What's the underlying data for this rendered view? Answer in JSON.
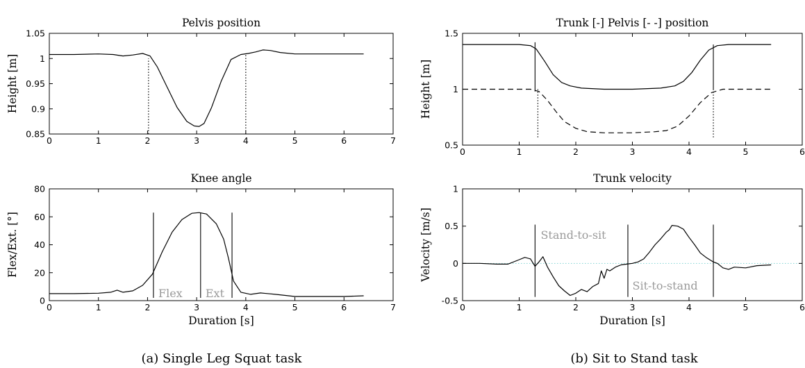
{
  "figures": [
    {
      "caption": "(a) Single Leg Squat task",
      "charts": [
        {
          "type": "line",
          "title": "Pelvis position",
          "xlabel": "",
          "ylabel": "Height [m]",
          "xlim": [
            0,
            7
          ],
          "ylim": [
            0.85,
            1.05
          ],
          "xticks": [
            0,
            1,
            2,
            3,
            4,
            5,
            6,
            7
          ],
          "yticks": [
            0.85,
            0.9,
            0.95,
            1,
            1.05
          ],
          "ytick_labels": [
            "0.85",
            "0.9",
            "0.95",
            "1",
            "1.05"
          ],
          "series": [
            {
              "style": "solid",
              "x": [
                0,
                0.5,
                1.0,
                1.3,
                1.5,
                1.7,
                1.9,
                2.05,
                2.2,
                2.4,
                2.6,
                2.8,
                2.95,
                3.05,
                3.15,
                3.3,
                3.5,
                3.7,
                3.9,
                4.05,
                4.2,
                4.35,
                4.5,
                4.7,
                5.0,
                5.5,
                6.0,
                6.4
              ],
              "y": [
                1.008,
                1.008,
                1.009,
                1.008,
                1.005,
                1.007,
                1.01,
                1.005,
                0.983,
                0.943,
                0.903,
                0.875,
                0.866,
                0.865,
                0.871,
                0.902,
                0.955,
                0.998,
                1.008,
                1.01,
                1.013,
                1.017,
                1.016,
                1.012,
                1.009,
                1.009,
                1.009,
                1.009
              ]
            }
          ],
          "vlines": [
            {
              "x": 2.02,
              "y0": 0.85,
              "y1": 1.0,
              "style": "dotted"
            },
            {
              "x": 4.0,
              "y0": 0.85,
              "y1": 1.01,
              "style": "dotted"
            }
          ],
          "annotations": []
        },
        {
          "type": "line",
          "title": "Knee angle",
          "xlabel": "Duration [s]",
          "ylabel": "Flex/Ext. [°]",
          "xlim": [
            0,
            7
          ],
          "ylim": [
            0,
            80
          ],
          "xticks": [
            0,
            1,
            2,
            3,
            4,
            5,
            6,
            7
          ],
          "yticks": [
            0,
            20,
            40,
            60,
            80
          ],
          "ytick_labels": [
            "0",
            "20",
            "40",
            "60",
            "80"
          ],
          "series": [
            {
              "style": "solid",
              "x": [
                0,
                0.5,
                1.0,
                1.25,
                1.38,
                1.5,
                1.7,
                1.9,
                2.1,
                2.3,
                2.5,
                2.7,
                2.9,
                3.05,
                3.2,
                3.4,
                3.55,
                3.65,
                3.75,
                3.9,
                4.1,
                4.3,
                4.6,
                5.0,
                5.5,
                6.0,
                6.4
              ],
              "y": [
                5,
                5,
                5.3,
                6,
                7.5,
                6,
                7,
                11,
                19,
                35,
                49,
                58,
                62.5,
                63,
                62,
                55,
                44,
                30,
                14,
                6,
                4.5,
                5.5,
                4.5,
                3,
                3,
                3,
                3.5
              ]
            }
          ],
          "vlines": [
            {
              "x": 2.12,
              "y0": 2,
              "y1": 63,
              "style": "solid"
            },
            {
              "x": 3.08,
              "y0": 2,
              "y1": 63,
              "style": "solid"
            },
            {
              "x": 3.72,
              "y0": 2,
              "y1": 63,
              "style": "solid"
            }
          ],
          "annotations": [
            {
              "text": "Flex",
              "x": 2.22,
              "y": 2.5
            },
            {
              "text": "Ext",
              "x": 3.18,
              "y": 2.5
            }
          ]
        }
      ]
    },
    {
      "caption": "(b) Sit to Stand task",
      "charts": [
        {
          "type": "line",
          "title": "Trunk [-]    Pelvis [- -] position",
          "xlabel": "",
          "ylabel": "Height [m]",
          "xlim": [
            0,
            6
          ],
          "ylim": [
            0.5,
            1.5
          ],
          "xticks": [
            0,
            1,
            2,
            3,
            4,
            5,
            6
          ],
          "yticks": [
            0.5,
            1,
            1.5
          ],
          "ytick_labels": [
            "0.5",
            "1",
            "1.5"
          ],
          "series": [
            {
              "style": "solid",
              "x": [
                0,
                0.5,
                1.0,
                1.2,
                1.3,
                1.45,
                1.6,
                1.75,
                1.9,
                2.1,
                2.5,
                3.0,
                3.5,
                3.75,
                3.9,
                4.05,
                4.2,
                4.35,
                4.5,
                4.7,
                5.0,
                5.45
              ],
              "y": [
                1.4,
                1.4,
                1.4,
                1.39,
                1.36,
                1.25,
                1.13,
                1.06,
                1.03,
                1.01,
                1.0,
                1.0,
                1.01,
                1.03,
                1.07,
                1.15,
                1.26,
                1.35,
                1.39,
                1.4,
                1.4,
                1.4
              ]
            },
            {
              "style": "dashed",
              "x": [
                0,
                0.5,
                1.0,
                1.2,
                1.35,
                1.5,
                1.65,
                1.8,
                2.0,
                2.2,
                2.5,
                3.0,
                3.4,
                3.6,
                3.8,
                4.0,
                4.2,
                4.4,
                4.6,
                5.0,
                5.45
              ],
              "y": [
                1.0,
                1.0,
                1.0,
                1.0,
                0.98,
                0.9,
                0.8,
                0.71,
                0.65,
                0.62,
                0.61,
                0.61,
                0.62,
                0.63,
                0.67,
                0.76,
                0.88,
                0.97,
                1.0,
                1.0,
                1.0
              ]
            }
          ],
          "vlines": [
            {
              "x": 1.28,
              "y0": 0.98,
              "y1": 1.42,
              "style": "solid"
            },
            {
              "x": 1.33,
              "y0": 0.57,
              "y1": 1.0,
              "style": "dotted"
            },
            {
              "x": 4.43,
              "y0": 0.57,
              "y1": 1.0,
              "style": "dotted"
            },
            {
              "x": 4.43,
              "y0": 1.0,
              "y1": 1.4,
              "style": "solid"
            }
          ],
          "annotations": []
        },
        {
          "type": "line",
          "title": "Trunk velocity",
          "xlabel": "Duration [s]",
          "ylabel": "Velocity [m/s]",
          "xlim": [
            0,
            6
          ],
          "ylim": [
            -0.5,
            1
          ],
          "xticks": [
            0,
            1,
            2,
            3,
            4,
            5,
            6
          ],
          "yticks": [
            -0.5,
            0,
            0.5,
            1
          ],
          "ytick_labels": [
            "-0.5",
            "0",
            "0.5",
            "1"
          ],
          "series": [
            {
              "style": "solid",
              "x": [
                0,
                0.3,
                0.6,
                0.8,
                1.0,
                1.1,
                1.2,
                1.28,
                1.35,
                1.42,
                1.5,
                1.6,
                1.7,
                1.8,
                1.9,
                2.0,
                2.1,
                2.2,
                2.3,
                2.4,
                2.45,
                2.5,
                2.55,
                2.6,
                2.7,
                2.8,
                2.9,
                3.0,
                3.1,
                3.2,
                3.3,
                3.4,
                3.5,
                3.6,
                3.65,
                3.7,
                3.8,
                3.9,
                4.0,
                4.1,
                4.2,
                4.3,
                4.43,
                4.5,
                4.6,
                4.7,
                4.8,
                5.0,
                5.2,
                5.45
              ],
              "y": [
                0,
                0,
                -0.01,
                -0.01,
                0.05,
                0.08,
                0.06,
                -0.04,
                0.02,
                0.09,
                -0.05,
                -0.18,
                -0.3,
                -0.37,
                -0.43,
                -0.4,
                -0.35,
                -0.38,
                -0.31,
                -0.27,
                -0.1,
                -0.2,
                -0.08,
                -0.1,
                -0.05,
                -0.02,
                -0.01,
                0.0,
                0.02,
                0.06,
                0.15,
                0.25,
                0.33,
                0.42,
                0.45,
                0.51,
                0.5,
                0.46,
                0.35,
                0.25,
                0.14,
                0.08,
                0.02,
                0.0,
                -0.06,
                -0.08,
                -0.05,
                -0.06,
                -0.03,
                -0.02
              ]
            }
          ],
          "hline": {
            "y": 0,
            "style": "dotted",
            "color": "#7fd4d4"
          },
          "vlines": [
            {
              "x": 1.28,
              "y0": -0.45,
              "y1": 0.52,
              "style": "solid"
            },
            {
              "x": 2.92,
              "y0": -0.45,
              "y1": 0.52,
              "style": "solid"
            },
            {
              "x": 4.43,
              "y0": -0.45,
              "y1": 0.52,
              "style": "solid"
            }
          ],
          "annotations": [
            {
              "text": "Stand-to-sit",
              "x": 1.38,
              "y": 0.33
            },
            {
              "text": "Sit-to-stand",
              "x": 3.0,
              "y": -0.35
            }
          ]
        }
      ]
    }
  ],
  "chart_data": [
    {
      "type": "line",
      "title": "Pelvis position",
      "xlabel": "",
      "ylabel": "Height [m]",
      "xlim": [
        0,
        7
      ],
      "ylim": [
        0.85,
        1.05
      ],
      "grid": false,
      "series": [
        {
          "x": [
            0,
            1.0,
            1.5,
            1.9,
            2.05,
            2.4,
            2.8,
            3.05,
            3.3,
            3.7,
            4.0,
            4.35,
            5.0,
            6.4
          ],
          "y": [
            1.008,
            1.009,
            1.005,
            1.01,
            1.005,
            0.943,
            0.875,
            0.865,
            0.902,
            0.998,
            1.01,
            1.017,
            1.009,
            1.009
          ]
        }
      ]
    },
    {
      "type": "line",
      "title": "Knee angle",
      "xlabel": "Duration [s]",
      "ylabel": "Flex/Ext. [°]",
      "xlim": [
        0,
        7
      ],
      "ylim": [
        0,
        80
      ],
      "grid": false,
      "series": [
        {
          "x": [
            0,
            1.0,
            1.38,
            1.9,
            2.1,
            2.5,
            3.05,
            3.55,
            3.75,
            4.3,
            5.0,
            6.4
          ],
          "y": [
            5,
            5.3,
            7.5,
            11,
            19,
            49,
            63,
            44,
            14,
            5.5,
            3,
            3.5
          ]
        }
      ]
    },
    {
      "type": "line",
      "title": "Trunk [-]    Pelvis [- -] position",
      "xlabel": "",
      "ylabel": "Height [m]",
      "xlim": [
        0,
        6
      ],
      "ylim": [
        0.5,
        1.5
      ],
      "grid": false,
      "series": [
        {
          "x": [
            0,
            1.2,
            1.45,
            1.9,
            2.5,
            3.5,
            3.9,
            4.2,
            4.5,
            5.45
          ],
          "y": [
            1.4,
            1.39,
            1.25,
            1.03,
            1.0,
            1.01,
            1.07,
            1.26,
            1.39,
            1.4
          ]
        },
        {
          "x": [
            0,
            1.2,
            1.5,
            1.8,
            2.2,
            3.0,
            3.6,
            4.0,
            4.4,
            5.45
          ],
          "y": [
            1.0,
            1.0,
            0.9,
            0.71,
            0.62,
            0.61,
            0.63,
            0.76,
            0.97,
            1.0
          ]
        }
      ]
    },
    {
      "type": "line",
      "title": "Trunk velocity",
      "xlabel": "Duration [s]",
      "ylabel": "Velocity [m/s]",
      "xlim": [
        0,
        6
      ],
      "ylim": [
        -0.5,
        1
      ],
      "grid": false,
      "series": [
        {
          "x": [
            0,
            1.1,
            1.28,
            1.42,
            1.9,
            2.4,
            2.9,
            3.3,
            3.7,
            4.1,
            4.43,
            4.7,
            5.45
          ],
          "y": [
            0,
            0.08,
            -0.04,
            0.09,
            -0.43,
            -0.27,
            -0.01,
            0.15,
            0.51,
            0.25,
            0.02,
            -0.08,
            -0.02
          ]
        }
      ]
    }
  ]
}
